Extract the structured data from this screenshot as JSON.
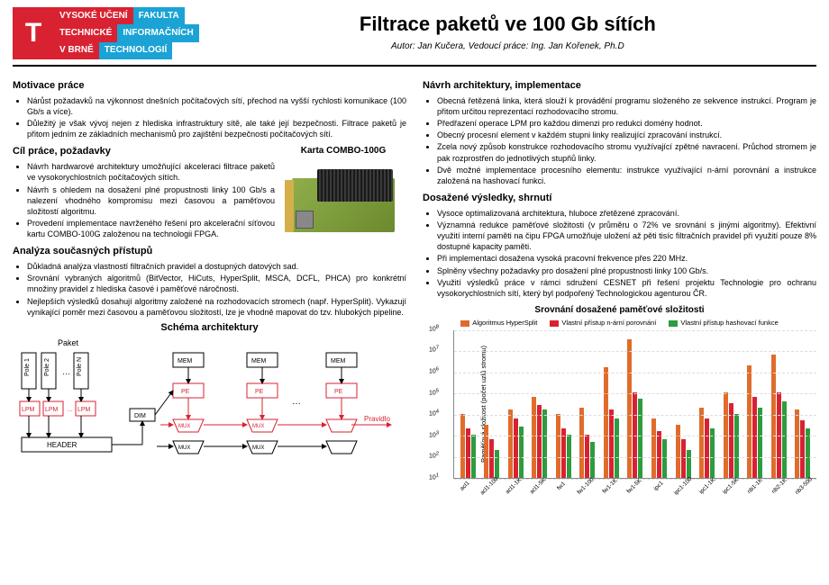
{
  "logo": {
    "t": "T",
    "r1a": "VYSOKÉ UČENÍ",
    "r1b": "FAKULTA",
    "r2a": "TECHNICKÉ",
    "r2b": "INFORMAČNÍCH",
    "r3a": "V BRNĚ",
    "r3b": "TECHNOLOGIÍ"
  },
  "title": "Filtrace paketů ve 100 Gb sítích",
  "subtitle": "Autor: Jan Kučera, Vedoucí práce: Ing. Jan Kořenek, Ph.D",
  "left": {
    "h1": "Motivace práce",
    "m1": "Nárůst požadavků na výkonnost dnešních počítačových sítí, přechod na vyšší rychlosti komunikace (100 Gb/s a více).",
    "m2": "Důležitý je však vývoj nejen z hlediska infrastruktury sítě, ale také její bezpečnosti. Filtrace paketů je přitom jedním ze základních mechanismů pro zajištění bezpečnosti počítačových sítí.",
    "h2": "Cíl práce, požadavky",
    "c1": "Návrh hardwarové architektury umožňující akceleraci filtrace paketů ve vysokorychlostních počítačových sítích.",
    "c2": "Návrh s ohledem na dosažení plné propustnosti linky 100 Gb/s a nalezení vhodného kompromisu mezi časovou a paměťovou složitostí algoritmu.",
    "c3": "Provedení implementace navrženého řešení pro akcelerační síťovou kartu COMBO-100G založenou na technologii FPGA.",
    "combo_label": "Karta COMBO-100G",
    "h3": "Analýza současných přístupů",
    "a1": "Důkladná analýza vlastností filtračních pravidel a dostupných datových sad.",
    "a2": "Srovnání vybraných algoritmů (BitVector, HiCuts, HyperSplit, MSCA, DCFL, PHCA) pro konkrétní množiny pravidel z hlediska časové i paměťové náročnosti.",
    "a3": "Nejlepších výsledků dosahují algoritmy založené na rozhodovacích stromech (např. HyperSplit). Vykazují vynikající poměr mezi časovou a paměťovou složitostí, lze je vhodně mapovat do tzv. hlubokých pipeline.",
    "schema_title": "Schéma architektury",
    "schema": {
      "paket": "Paket",
      "pole": "Pole",
      "lpm": "LPM",
      "header": "HEADER",
      "dim": "DIM",
      "mux": "MUX",
      "mem": "MEM",
      "pe": "PE",
      "pravidlo": "Pravidlo"
    }
  },
  "right": {
    "h1": "Návrh architektury, implementace",
    "n1": "Obecná řetězená linka, která slouží k provádění programu složeného ze sekvence instrukcí. Program je přitom určitou reprezentací rozhodovacího stromu.",
    "n2": "Předřazení operace LPM pro každou dimenzi pro redukci domény hodnot.",
    "n3": "Obecný procesní element v každém stupni linky realizující zpracování instrukcí.",
    "n4": "Zcela nový způsob konstrukce rozhodovacího stromu využívající zpětné navracení. Průchod stromem je pak rozprostřen do jednotlivých stupňů linky.",
    "n5": "Dvě možné implementace procesního elementu: instrukce využívající n-ární porovnání a instrukce založená na hashovací funkci.",
    "h2": "Dosažené výsledky, shrnutí",
    "d1": "Vysoce optimalizovaná architektura, hluboce zřetězené zpracování.",
    "d2": "Významná redukce paměťové složitosti (v průměru o 72% ve srovnání s jinými algoritmy). Efektivní využití interní paměti na čipu FPGA umožňuje uložení až pěti tisíc filtračních pravidel při využití pouze 8% dostupné kapacity paměti.",
    "d3": "Při implementaci dosažena vysoká pracovní frekvence přes 220 MHz.",
    "d4": "Splněny všechny požadavky pro dosažení plné propustnosti linky 100 Gb/s.",
    "d5": "Využití výsledků práce v rámci sdružení CESNET při řešení projektu Technologie pro ochranu vysokorychlostních sítí, který byl podpořený Technologickou agenturou ČR.",
    "chart_title": "Srovnání dosažené paměťové složitosti",
    "chart": {
      "ylabel": "Paměťová složitost (počet uzlů stromu)",
      "legend": [
        {
          "label": "Algoritmus HyperSplit",
          "color": "#e06c2b"
        },
        {
          "label": "Vlastní přístup n-ární porovnání",
          "color": "#d92231"
        },
        {
          "label": "Vlastní přístup hashovací funkce",
          "color": "#2e9b3e"
        }
      ],
      "yticks": [
        1,
        2,
        3,
        4,
        5,
        6,
        7,
        8
      ],
      "categories": [
        "acl1",
        "acl1-100",
        "acl1-1K",
        "acl1-5K",
        "fw1",
        "fw1-100",
        "fw1-1K",
        "fw1-5K",
        "ipc1",
        "ipc1-100",
        "ipc1-1K",
        "ipc1-5K",
        "nb1-1K",
        "nb2-1K",
        "nb3-500"
      ],
      "series": {
        "hypersplit": [
          4.0,
          3.5,
          4.2,
          4.8,
          4.0,
          4.3,
          6.2,
          7.5,
          3.8,
          3.5,
          4.3,
          5.0,
          6.3,
          6.8,
          4.2
        ],
        "nary": [
          3.3,
          2.8,
          3.8,
          4.4,
          3.3,
          3.0,
          4.2,
          5.0,
          3.2,
          2.8,
          3.8,
          4.5,
          4.8,
          5.0,
          3.7
        ],
        "hash": [
          3.0,
          2.3,
          3.4,
          4.2,
          3.0,
          2.7,
          3.8,
          4.7,
          2.8,
          2.3,
          3.3,
          4.0,
          4.3,
          4.6,
          3.3
        ]
      },
      "colors": {
        "hypersplit": "#e06c2b",
        "nary": "#d92231",
        "hash": "#2e9b3e"
      },
      "ymin": 1,
      "ymax": 8
    }
  }
}
